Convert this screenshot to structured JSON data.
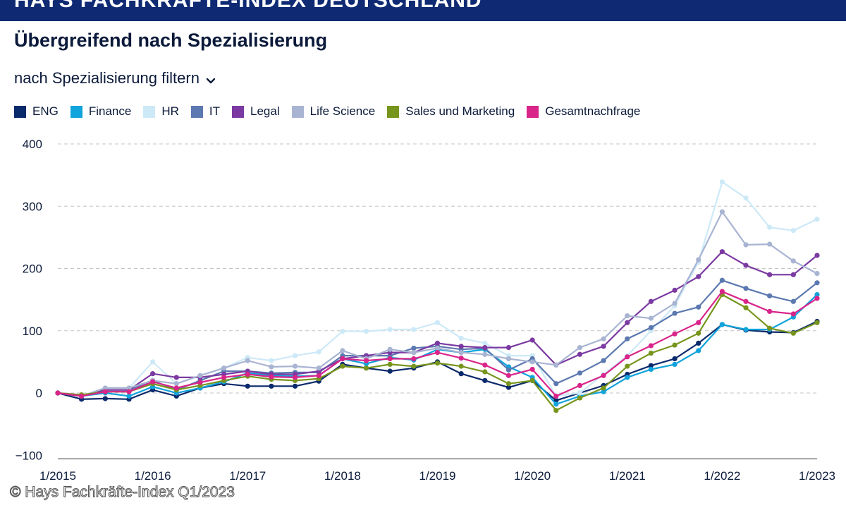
{
  "header": {
    "title": "HAYS FACHKRÄFTE-INDEX DEUTSCHLAND"
  },
  "page_title": "Übergreifend nach Spezialisierung",
  "filter": {
    "label": "nach Spezialisierung filtern"
  },
  "copyright": "© Hays Fachkräfte-Index Q1/2023",
  "chart_data": {
    "type": "line",
    "x": [
      "Q1/2015",
      "Q2/2015",
      "Q3/2015",
      "Q4/2015",
      "Q1/2016",
      "Q2/2016",
      "Q3/2016",
      "Q4/2016",
      "Q1/2017",
      "Q2/2017",
      "Q3/2017",
      "Q4/2017",
      "Q1/2018",
      "Q2/2018",
      "Q3/2018",
      "Q4/2018",
      "Q1/2019",
      "Q2/2019",
      "Q3/2019",
      "Q4/2019",
      "Q1/2020",
      "Q2/2020",
      "Q3/2020",
      "Q4/2020",
      "Q1/2021",
      "Q2/2021",
      "Q3/2021",
      "Q4/2021",
      "Q1/2022",
      "Q2/2022",
      "Q3/2022",
      "Q4/2022",
      "Q1/2023"
    ],
    "tick_labels": [
      "1/2015",
      "1/2016",
      "1/2017",
      "1/2018",
      "1/2019",
      "1/2020",
      "1/2021",
      "1/2022",
      "1/2023"
    ],
    "ylim": [
      -100,
      400
    ],
    "yticks": [
      -100,
      0,
      100,
      200,
      300,
      400
    ],
    "grid": true,
    "legend_position": "top",
    "series": [
      {
        "name": "ENG",
        "color": "#0b2a6b",
        "values": [
          0,
          -10,
          -9,
          -10,
          5,
          -5,
          8,
          15,
          11,
          11,
          11,
          19,
          46,
          40,
          35,
          40,
          50,
          31,
          20,
          9,
          20,
          -12,
          0,
          12,
          30,
          44,
          55,
          80,
          110,
          101,
          98,
          97,
          115
        ]
      },
      {
        "name": "Finance",
        "color": "#10a3dc",
        "values": [
          0,
          -5,
          0,
          -5,
          10,
          0,
          8,
          18,
          32,
          28,
          27,
          28,
          55,
          47,
          57,
          53,
          70,
          65,
          70,
          42,
          25,
          -18,
          -5,
          2,
          25,
          38,
          46,
          68,
          110,
          102,
          102,
          122,
          158
        ]
      },
      {
        "name": "HR",
        "color": "#cde9f7",
        "values": [
          0,
          -5,
          8,
          8,
          50,
          15,
          28,
          40,
          57,
          52,
          60,
          66,
          99,
          99,
          102,
          102,
          113,
          88,
          80,
          60,
          60,
          -5,
          0,
          30,
          60,
          100,
          140,
          210,
          339,
          313,
          266,
          261,
          279
        ]
      },
      {
        "name": "IT",
        "color": "#5b78b0",
        "values": [
          0,
          -5,
          5,
          5,
          20,
          5,
          20,
          35,
          35,
          32,
          33,
          33,
          60,
          60,
          60,
          72,
          75,
          70,
          72,
          37,
          55,
          15,
          32,
          52,
          87,
          105,
          128,
          138,
          181,
          168,
          156,
          147,
          177
        ]
      },
      {
        "name": "Legal",
        "color": "#7b3aa1",
        "values": [
          0,
          -5,
          5,
          5,
          31,
          25,
          25,
          30,
          35,
          30,
          30,
          35,
          55,
          60,
          65,
          65,
          80,
          75,
          73,
          73,
          85,
          45,
          62,
          75,
          113,
          147,
          165,
          187,
          227,
          205,
          190,
          190,
          221
        ]
      },
      {
        "name": "Life Science",
        "color": "#a8b4d2",
        "values": [
          0,
          -5,
          8,
          8,
          20,
          15,
          28,
          40,
          52,
          42,
          43,
          40,
          68,
          55,
          70,
          65,
          72,
          65,
          62,
          55,
          50,
          45,
          73,
          87,
          124,
          120,
          144,
          214,
          291,
          238,
          239,
          212,
          192
        ]
      },
      {
        "name": "Sales und Marketing",
        "color": "#77951d",
        "values": [
          0,
          -3,
          2,
          2,
          15,
          5,
          12,
          20,
          27,
          22,
          20,
          23,
          43,
          40,
          46,
          43,
          48,
          43,
          34,
          15,
          20,
          -28,
          -8,
          8,
          43,
          64,
          77,
          96,
          158,
          137,
          104,
          96,
          113
        ]
      },
      {
        "name": "Gesamtnachfrage",
        "color": "#d9248a",
        "values": [
          0,
          -5,
          2,
          2,
          18,
          8,
          17,
          25,
          30,
          26,
          25,
          28,
          55,
          52,
          55,
          55,
          65,
          56,
          45,
          28,
          38,
          -5,
          12,
          28,
          58,
          76,
          95,
          113,
          163,
          147,
          131,
          127,
          152
        ]
      }
    ]
  }
}
